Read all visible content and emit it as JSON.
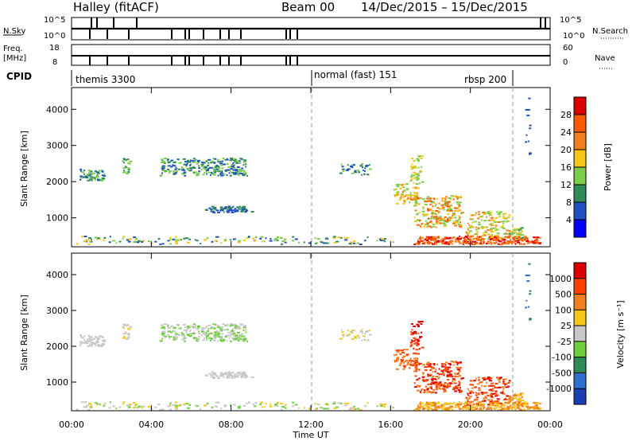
{
  "header": {
    "radar": "Halley (fitACF)",
    "beam": "Beam 00",
    "dates": "14/Dec/2015 – 15/Dec/2015"
  },
  "top_panel": {
    "left_label": "N.Sky",
    "left_ticks": [
      "10^5",
      "10^0"
    ],
    "right_label": "N.Search",
    "right_ticks": [
      "10^5",
      "10^0"
    ]
  },
  "freq_panel": {
    "left_label_1": "Freq.",
    "left_label_2": "[MHz]",
    "left_ticks": [
      "18",
      "8"
    ],
    "right_label": "Nave",
    "right_ticks": [
      "60",
      "0"
    ]
  },
  "cpid": {
    "label": "CPID",
    "segments": [
      "themis 3300",
      "normal (fast) 151",
      "rbsp 200"
    ]
  },
  "chart_data": [
    {
      "type": "heatmap",
      "title": "",
      "ylabel": "Slant Range [km]",
      "xlabel": "",
      "y_ticks": [
        "1000",
        "2000",
        "3000",
        "4000"
      ],
      "ylim": [
        200,
        4600
      ],
      "colorbar": {
        "label": "Power [dB]",
        "ticks": [
          "4",
          "8",
          "12",
          "16",
          "20",
          "24",
          "28"
        ],
        "range": [
          0,
          30
        ],
        "colors": [
          "#0000ff",
          "#2050c0",
          "#2e8b57",
          "#7ccd4c",
          "#f5c518",
          "#f08020",
          "#ff5a00",
          "#dd0000"
        ]
      }
    },
    {
      "type": "heatmap",
      "title": "",
      "ylabel": "Slant Range [km]",
      "xlabel": "Time UT",
      "x_ticks": [
        "00:00",
        "04:00",
        "08:00",
        "12:00",
        "16:00",
        "20:00",
        "00:00"
      ],
      "y_ticks": [
        "1000",
        "2000",
        "3000",
        "4000"
      ],
      "ylim": [
        200,
        4600
      ],
      "colorbar": {
        "label": "Velocity [m s⁻¹]",
        "ticks": [
          "1000",
          "500",
          "100",
          "25",
          "-25",
          "-100",
          "-500",
          "-1000"
        ],
        "colors": [
          "#1a3fb0",
          "#2f6fd0",
          "#2e8b57",
          "#6fcf3f",
          "#c8c8c8",
          "#f5c518",
          "#f08020",
          "#ff4000",
          "#dd0000"
        ]
      }
    }
  ]
}
